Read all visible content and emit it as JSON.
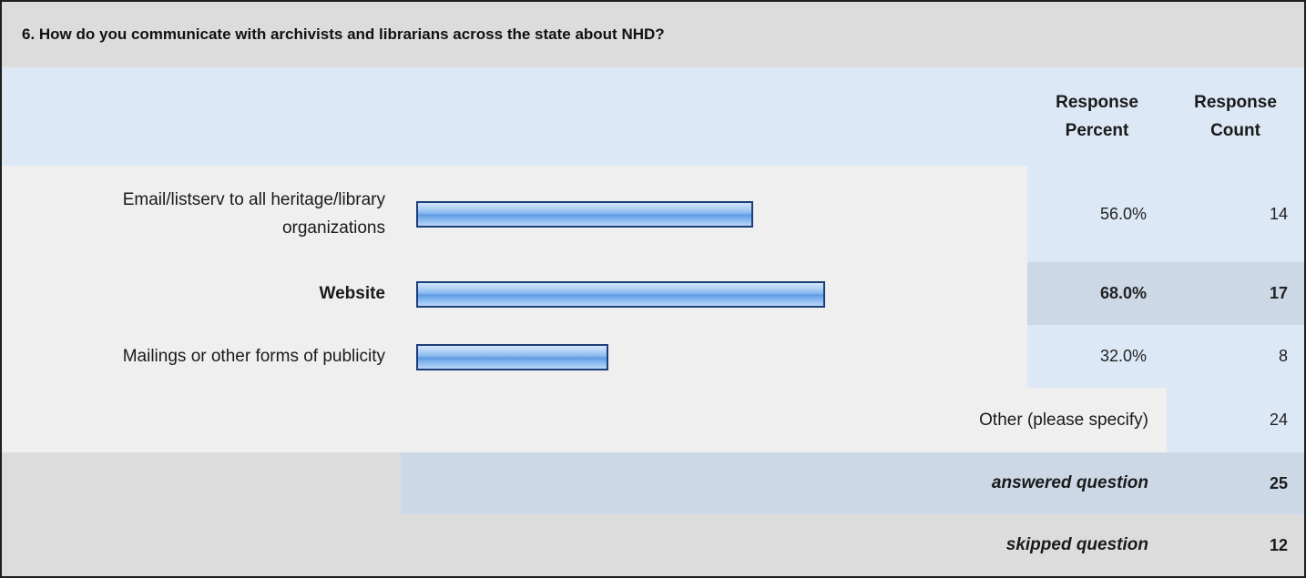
{
  "question": {
    "title": "6. How do you communicate with archivists and librarians across the state about NHD?"
  },
  "header": {
    "percent_line1": "Response",
    "percent_line2": "Percent",
    "count_line1": "Response",
    "count_line2": "Count"
  },
  "rows": [
    {
      "label_line1": "Email/listserv to all heritage/library",
      "label_line2": "organizations",
      "percent": "56.0%",
      "count": "14",
      "value": 56.0,
      "highlight": false
    },
    {
      "label_line1": "Website",
      "label_line2": "",
      "percent": "68.0%",
      "count": "17",
      "value": 68.0,
      "highlight": true
    },
    {
      "label_line1": "Mailings or other forms of publicity",
      "label_line2": "",
      "percent": "32.0%",
      "count": "8",
      "value": 32.0,
      "highlight": false
    }
  ],
  "other": {
    "label": "Other (please specify)",
    "count": "24"
  },
  "summary": {
    "answered_label": "answered question",
    "answered_count": "25",
    "skipped_label": "skipped question",
    "skipped_count": "12"
  },
  "colors": {
    "header_bg": "#dce8f5",
    "row_bg": "#efefef",
    "highlight_bg": "#ccd8e6",
    "bar_border": "#1b3e78",
    "bar_fill": "#7fb2ed"
  }
}
